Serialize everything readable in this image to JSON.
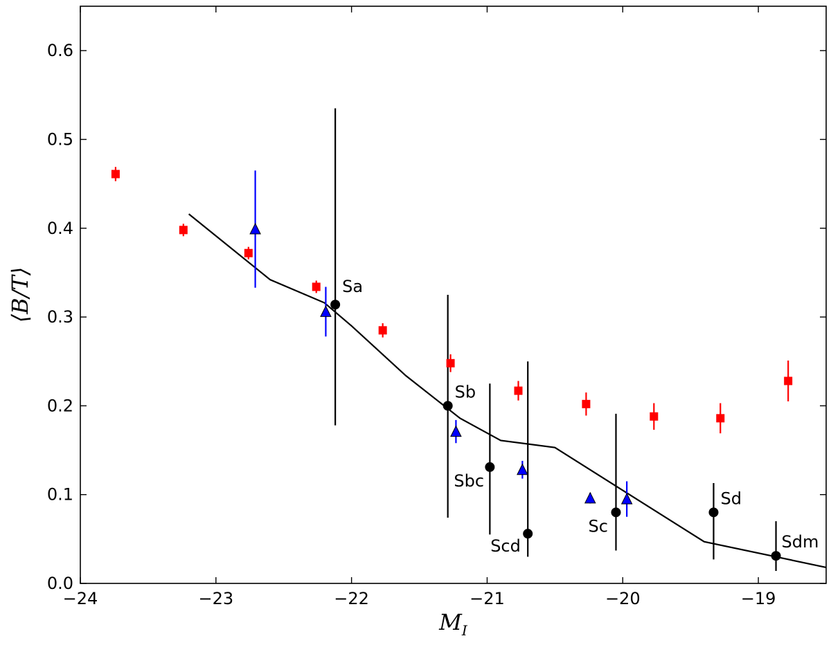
{
  "chart_data": {
    "type": "scatter",
    "xlabel": "M",
    "xlabel_sub": "I",
    "ylabel": "⟨B/T⟩",
    "xlim": [
      -24,
      -18.5
    ],
    "ylim": [
      0.0,
      0.65
    ],
    "xticks": [
      -24,
      -23,
      -22,
      -21,
      -20,
      -19
    ],
    "xtick_labels": [
      "−24",
      "−23",
      "−22",
      "−21",
      "−20",
      "−19"
    ],
    "yticks": [
      0.0,
      0.1,
      0.2,
      0.3,
      0.4,
      0.5,
      0.6
    ],
    "ytick_labels": [
      "0.0",
      "0.1",
      "0.2",
      "0.3",
      "0.4",
      "0.5",
      "0.6"
    ],
    "grid": false,
    "series": [
      {
        "marker": "square",
        "color": "#ff0000",
        "x": [
          -23.74,
          -23.24,
          -22.76,
          -22.26,
          -21.77,
          -21.27,
          -20.77,
          -20.27,
          -19.77,
          -19.28,
          -18.78
        ],
        "y": [
          0.461,
          0.398,
          0.372,
          0.334,
          0.285,
          0.248,
          0.217,
          0.202,
          0.188,
          0.186,
          0.228
        ],
        "err": [
          0.008,
          0.007,
          0.007,
          0.007,
          0.008,
          0.01,
          0.011,
          0.013,
          0.015,
          0.017,
          0.023
        ]
      },
      {
        "marker": "triangle",
        "color": "#0000ff",
        "x": [
          -22.71,
          -22.19,
          -21.23,
          -20.74,
          -20.24,
          -19.97
        ],
        "y": [
          0.399,
          0.306,
          0.171,
          0.128,
          0.096,
          0.095
        ],
        "err_low": [
          0.066,
          0.028,
          0.013,
          0.01,
          0.006,
          0.02
        ],
        "err_high": [
          0.066,
          0.028,
          0.013,
          0.01,
          0.006,
          0.02
        ]
      },
      {
        "marker": "circle",
        "color": "#000000",
        "x": [
          -22.12,
          -21.29,
          -20.98,
          -20.7,
          -20.05,
          -19.33,
          -18.87
        ],
        "y": [
          0.314,
          0.2,
          0.131,
          0.056,
          0.08,
          0.08,
          0.031
        ],
        "err_low": [
          0.136,
          0.126,
          0.076,
          0.026,
          0.043,
          0.053,
          0.017
        ],
        "err_high": [
          0.221,
          0.125,
          0.094,
          0.194,
          0.111,
          0.033,
          0.039
        ],
        "labels": [
          "Sa",
          "Sb",
          "Sbc",
          "Scd",
          "Sc",
          "Sd",
          "Sdm"
        ]
      },
      {
        "marker": "line",
        "color": "#000000",
        "x": [
          -23.2,
          -22.6,
          -22.2,
          -22.0,
          -21.6,
          -21.2,
          -20.9,
          -20.5,
          -19.4,
          -18.5
        ],
        "y": [
          0.416,
          0.342,
          0.316,
          0.29,
          0.234,
          0.186,
          0.161,
          0.153,
          0.047,
          0.018
        ]
      }
    ]
  }
}
